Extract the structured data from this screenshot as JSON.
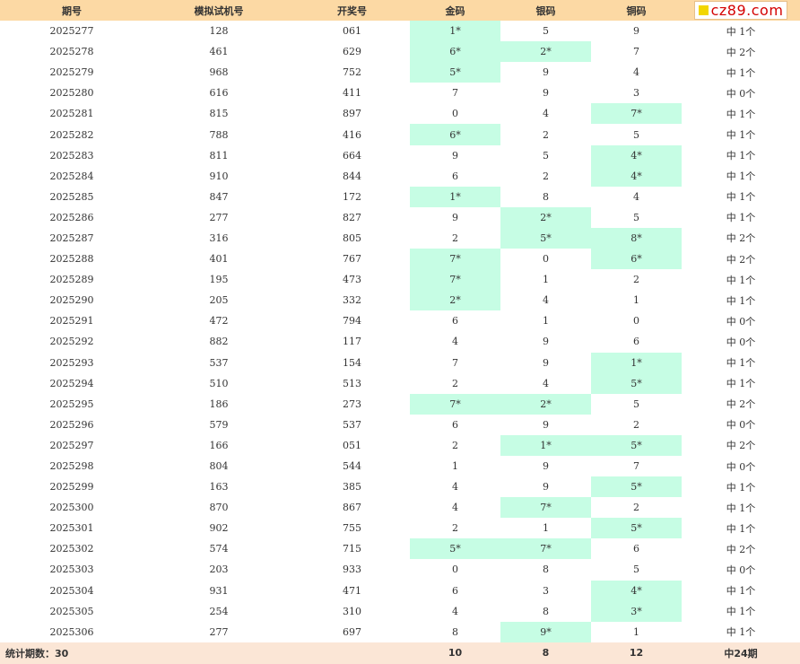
{
  "headers": [
    "期号",
    "模拟试机号",
    "开奖号",
    "金码",
    "银码",
    "铜码"
  ],
  "logo": {
    "text": "cz89.com"
  },
  "rows": [
    {
      "period": "2025277",
      "sim": "128",
      "draw": "061",
      "gold": "1*",
      "silver": "5",
      "bronze": "9",
      "hits": "中 1个"
    },
    {
      "period": "2025278",
      "sim": "461",
      "draw": "629",
      "gold": "6*",
      "silver": "2*",
      "bronze": "7",
      "hits": "中 2个"
    },
    {
      "period": "2025279",
      "sim": "968",
      "draw": "752",
      "gold": "5*",
      "silver": "9",
      "bronze": "4",
      "hits": "中 1个"
    },
    {
      "period": "2025280",
      "sim": "616",
      "draw": "411",
      "gold": "7",
      "silver": "9",
      "bronze": "3",
      "hits": "中 0个"
    },
    {
      "period": "2025281",
      "sim": "815",
      "draw": "897",
      "gold": "0",
      "silver": "4",
      "bronze": "7*",
      "hits": "中 1个"
    },
    {
      "period": "2025282",
      "sim": "788",
      "draw": "416",
      "gold": "6*",
      "silver": "2",
      "bronze": "5",
      "hits": "中 1个"
    },
    {
      "period": "2025283",
      "sim": "811",
      "draw": "664",
      "gold": "9",
      "silver": "5",
      "bronze": "4*",
      "hits": "中 1个"
    },
    {
      "period": "2025284",
      "sim": "910",
      "draw": "844",
      "gold": "6",
      "silver": "2",
      "bronze": "4*",
      "hits": "中 1个"
    },
    {
      "period": "2025285",
      "sim": "847",
      "draw": "172",
      "gold": "1*",
      "silver": "8",
      "bronze": "4",
      "hits": "中 1个"
    },
    {
      "period": "2025286",
      "sim": "277",
      "draw": "827",
      "gold": "9",
      "silver": "2*",
      "bronze": "5",
      "hits": "中 1个"
    },
    {
      "period": "2025287",
      "sim": "316",
      "draw": "805",
      "gold": "2",
      "silver": "5*",
      "bronze": "8*",
      "hits": "中 2个"
    },
    {
      "period": "2025288",
      "sim": "401",
      "draw": "767",
      "gold": "7*",
      "silver": "0",
      "bronze": "6*",
      "hits": "中 2个"
    },
    {
      "period": "2025289",
      "sim": "195",
      "draw": "473",
      "gold": "7*",
      "silver": "1",
      "bronze": "2",
      "hits": "中 1个"
    },
    {
      "period": "2025290",
      "sim": "205",
      "draw": "332",
      "gold": "2*",
      "silver": "4",
      "bronze": "1",
      "hits": "中 1个"
    },
    {
      "period": "2025291",
      "sim": "472",
      "draw": "794",
      "gold": "6",
      "silver": "1",
      "bronze": "0",
      "hits": "中 0个"
    },
    {
      "period": "2025292",
      "sim": "882",
      "draw": "117",
      "gold": "4",
      "silver": "9",
      "bronze": "6",
      "hits": "中 0个"
    },
    {
      "period": "2025293",
      "sim": "537",
      "draw": "154",
      "gold": "7",
      "silver": "9",
      "bronze": "1*",
      "hits": "中 1个"
    },
    {
      "period": "2025294",
      "sim": "510",
      "draw": "513",
      "gold": "2",
      "silver": "4",
      "bronze": "5*",
      "hits": "中 1个"
    },
    {
      "period": "2025295",
      "sim": "186",
      "draw": "273",
      "gold": "7*",
      "silver": "2*",
      "bronze": "5",
      "hits": "中 2个"
    },
    {
      "period": "2025296",
      "sim": "579",
      "draw": "537",
      "gold": "6",
      "silver": "9",
      "bronze": "2",
      "hits": "中 0个"
    },
    {
      "period": "2025297",
      "sim": "166",
      "draw": "051",
      "gold": "2",
      "silver": "1*",
      "bronze": "5*",
      "hits": "中 2个"
    },
    {
      "period": "2025298",
      "sim": "804",
      "draw": "544",
      "gold": "1",
      "silver": "9",
      "bronze": "7",
      "hits": "中 0个"
    },
    {
      "period": "2025299",
      "sim": "163",
      "draw": "385",
      "gold": "4",
      "silver": "9",
      "bronze": "5*",
      "hits": "中 1个"
    },
    {
      "period": "2025300",
      "sim": "870",
      "draw": "867",
      "gold": "4",
      "silver": "7*",
      "bronze": "2",
      "hits": "中 1个"
    },
    {
      "period": "2025301",
      "sim": "902",
      "draw": "755",
      "gold": "2",
      "silver": "1",
      "bronze": "5*",
      "hits": "中 1个"
    },
    {
      "period": "2025302",
      "sim": "574",
      "draw": "715",
      "gold": "5*",
      "silver": "7*",
      "bronze": "6",
      "hits": "中 2个"
    },
    {
      "period": "2025303",
      "sim": "203",
      "draw": "933",
      "gold": "0",
      "silver": "8",
      "bronze": "5",
      "hits": "中 0个"
    },
    {
      "period": "2025304",
      "sim": "931",
      "draw": "471",
      "gold": "6",
      "silver": "3",
      "bronze": "4*",
      "hits": "中 1个"
    },
    {
      "period": "2025305",
      "sim": "254",
      "draw": "310",
      "gold": "4",
      "silver": "8",
      "bronze": "3*",
      "hits": "中 1个"
    },
    {
      "period": "2025306",
      "sim": "277",
      "draw": "697",
      "gold": "8",
      "silver": "9*",
      "bronze": "1",
      "hits": "中 1个"
    }
  ],
  "footer": {
    "label": "统计期数：30",
    "gold_total": "10",
    "silver_total": "8",
    "bronze_total": "12",
    "hits_total": "中24期"
  },
  "colors": {
    "header_bg": "#fcd9a4",
    "hit_bg": "#c6fde4",
    "footer_bg": "#fbe6d6",
    "logo_text": "#d40000"
  }
}
